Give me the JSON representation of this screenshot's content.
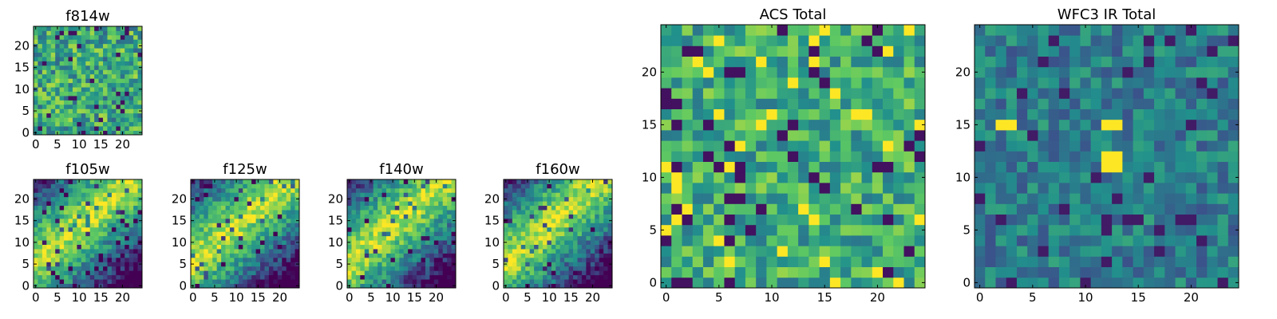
{
  "colormap": "viridis",
  "colormap_stops": [
    "#440154",
    "#3b528b",
    "#21918c",
    "#5ec962",
    "#fde725"
  ],
  "chart_data": [
    {
      "type": "heatmap",
      "title": "f814w",
      "shape": [
        25,
        25
      ],
      "x_ticks": [
        "0",
        "5",
        "10",
        "15",
        "20"
      ],
      "y_ticks": [
        "0",
        "5",
        "10",
        "15",
        "20"
      ],
      "pattern": "noise",
      "seed": 11
    },
    {
      "type": "heatmap",
      "title": "f105w",
      "shape": [
        25,
        25
      ],
      "x_ticks": [
        "0",
        "5",
        "10",
        "15",
        "20"
      ],
      "y_ticks": [
        "0",
        "5",
        "10",
        "15",
        "20"
      ],
      "pattern": "diagonal",
      "seed": 23
    },
    {
      "type": "heatmap",
      "title": "f125w",
      "shape": [
        25,
        25
      ],
      "x_ticks": [
        "0",
        "5",
        "10",
        "15",
        "20"
      ],
      "y_ticks": [
        "0",
        "5",
        "10",
        "15",
        "20"
      ],
      "pattern": "diagonal",
      "seed": 37
    },
    {
      "type": "heatmap",
      "title": "f140w",
      "shape": [
        25,
        25
      ],
      "x_ticks": [
        "0",
        "5",
        "10",
        "15",
        "20"
      ],
      "y_ticks": [
        "0",
        "5",
        "10",
        "15",
        "20"
      ],
      "pattern": "diagonal",
      "seed": 41
    },
    {
      "type": "heatmap",
      "title": "f160w",
      "shape": [
        25,
        25
      ],
      "x_ticks": [
        "0",
        "5",
        "10",
        "15",
        "20"
      ],
      "y_ticks": [
        "0",
        "5",
        "10",
        "15",
        "20"
      ],
      "pattern": "diagonal",
      "seed": 53
    },
    {
      "type": "heatmap",
      "title": "ACS Total",
      "shape": [
        25,
        25
      ],
      "x_ticks": [
        "0",
        "5",
        "10",
        "15",
        "20"
      ],
      "y_ticks": [
        "0",
        "5",
        "10",
        "15",
        "20"
      ],
      "pattern": "noise-bright",
      "seed": 67
    },
    {
      "type": "heatmap",
      "title": "WFC3 IR Total",
      "shape": [
        25,
        25
      ],
      "x_ticks": [
        "0",
        "5",
        "10",
        "15",
        "20"
      ],
      "y_ticks": [
        "0",
        "5",
        "10",
        "15",
        "20"
      ],
      "pattern": "noise-dark",
      "seed": 79
    }
  ]
}
